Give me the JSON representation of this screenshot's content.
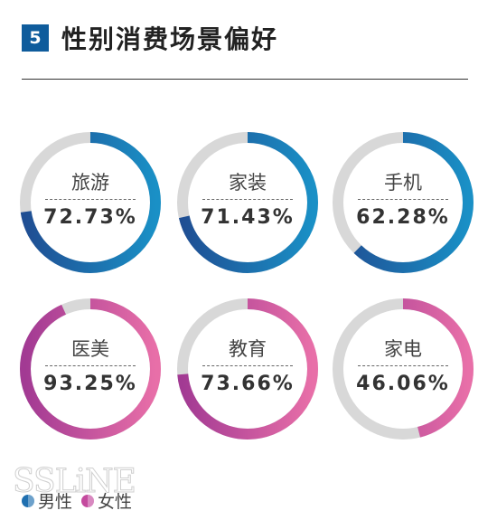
{
  "header": {
    "number": "5",
    "title": "性别消费场景偏好"
  },
  "colors": {
    "male_dark": "#1f4e93",
    "male_light": "#1a90c6",
    "female_dark": "#a23a93",
    "female_light": "#e86fa8",
    "track": "#d8d8d8"
  },
  "chart_data": {
    "type": "pie",
    "title": "性别消费场景偏好",
    "items": [
      {
        "label": "旅游",
        "value": 72.73,
        "display": "72.73%",
        "group": "male"
      },
      {
        "label": "家装",
        "value": 71.43,
        "display": "71.43%",
        "group": "male"
      },
      {
        "label": "手机",
        "value": 62.28,
        "display": "62.28%",
        "group": "male"
      },
      {
        "label": "医美",
        "value": 93.25,
        "display": "93.25%",
        "group": "female"
      },
      {
        "label": "教育",
        "value": 73.66,
        "display": "73.66%",
        "group": "female"
      },
      {
        "label": "家电",
        "value": 46.06,
        "display": "46.06%",
        "group": "female"
      }
    ],
    "legend": [
      {
        "label": "男性",
        "group": "male"
      },
      {
        "label": "女性",
        "group": "female"
      }
    ],
    "legend_position": "bottom-left"
  },
  "watermark": "SSLiNE"
}
